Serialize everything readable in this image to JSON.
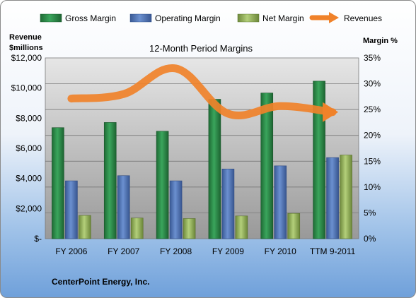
{
  "chart_data": {
    "type": "bar",
    "title": "12-Month Period Margins",
    "company": "CenterPoint Energy, Inc.",
    "categories": [
      "FY 2006",
      "FY 2007",
      "FY 2008",
      "FY 2009",
      "FY 2010",
      "TTM 9-2011"
    ],
    "left_axis": {
      "label_line1": "Revenue",
      "label_line2": "$millions",
      "min": 0,
      "max": 12000,
      "ticks": [
        "$-",
        "$2,000",
        "$4,000",
        "$6,000",
        "$8,000",
        "$10,000",
        "$12,000"
      ]
    },
    "right_axis": {
      "label": "Margin %",
      "min": 0,
      "max": 35,
      "ticks": [
        "0%",
        "5%",
        "10%",
        "15%",
        "20%",
        "25%",
        "30%",
        "35%"
      ]
    },
    "grid": true,
    "legend_position": "top",
    "series": [
      {
        "name": "Gross Margin",
        "kind": "bar",
        "axis": "right",
        "color": "#2e8b4a",
        "values": [
          21.5,
          22.5,
          20.8,
          27.0,
          28.2,
          30.5
        ]
      },
      {
        "name": "Operating Margin",
        "kind": "bar",
        "axis": "right",
        "color": "#4f75b8",
        "values": [
          11.2,
          12.2,
          11.2,
          13.5,
          14.1,
          15.7
        ]
      },
      {
        "name": "Net Margin",
        "kind": "bar",
        "axis": "right",
        "color": "#94b25a",
        "values": [
          4.5,
          4.0,
          3.9,
          4.4,
          4.9,
          16.2
        ]
      },
      {
        "name": "Revenues",
        "kind": "line",
        "axis": "left",
        "color": "#f0822a",
        "values": [
          9300,
          9600,
          11300,
          8300,
          8800,
          8400
        ]
      }
    ]
  }
}
